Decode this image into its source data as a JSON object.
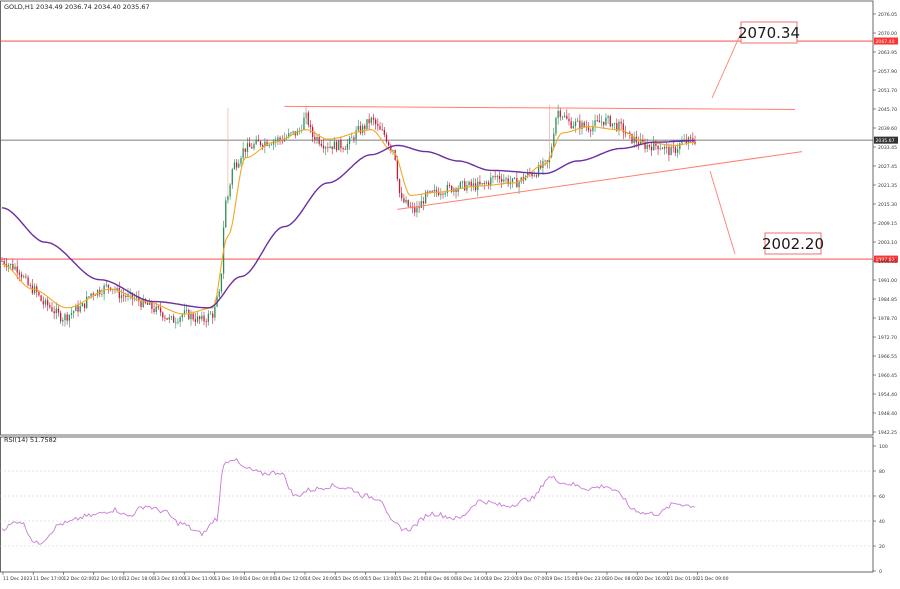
{
  "header": {
    "symbol_line": "GOLD,H1  2034.49 2036.74 2034.40 2035.67",
    "indicator_line": "RSI(14) 51.7582"
  },
  "annotations": {
    "target_up": "2070.34",
    "target_down": "2002.20"
  },
  "colors": {
    "bull": "#2e8b57",
    "bear": "#c21b3a",
    "ma_fast": "#f5a623",
    "ma_slow": "#6a2fa0",
    "rsi": "#c97bd6",
    "level_line": "#ff3333",
    "trend_line": "#ff7f6e",
    "current_price_tag": "#333333"
  },
  "chart_data": [
    {
      "type": "candlestick",
      "title": "GOLD,H1",
      "ylim": [
        1942.25,
        2076.05
      ],
      "y_ticks": [
        "2076.05",
        "2070.00",
        "2063.95",
        "2057.90",
        "2051.70",
        "2045.70",
        "2039.60",
        "2033.45",
        "2027.45",
        "2021.35",
        "2015.30",
        "2009.15",
        "2003.10",
        "1996.95",
        "1991.00",
        "1984.85",
        "1978.70",
        "1972.70",
        "1966.55",
        "1960.45",
        "1954.40",
        "1948.40",
        "1942.25"
      ],
      "x_ticks": [
        "11 Dec 2023",
        "11 Dec 17:00",
        "12 Dec 02:00",
        "12 Dec 10:00",
        "12 Dec 18:00",
        "13 Dec 03:00",
        "13 Dec 11:00",
        "13 Dec 19:00",
        "14 Dec 04:00",
        "14 Dec 12:00",
        "14 Dec 20:00",
        "15 Dec 05:00",
        "15 Dec 13:00",
        "15 Dec 21:00",
        "18 Dec 06:00",
        "18 Dec 14:00",
        "18 Dec 22:00",
        "19 Dec 07:00",
        "19 Dec 15:00",
        "19 Dec 23:00",
        "20 Dec 08:00",
        "20 Dec 16:00",
        "21 Dec 01:00",
        "21 Dec 09:00"
      ],
      "horizontal_levels": [
        {
          "value": 2067.4,
          "label": "2067.40"
        },
        {
          "value": 1997.6,
          "label": "1997.63"
        }
      ],
      "current_price": {
        "value": 2035.67,
        "label": "2035.67"
      },
      "anchors": [
        [
          0,
          1997
        ],
        [
          6,
          1995
        ],
        [
          14,
          1988
        ],
        [
          20,
          1983
        ],
        [
          28,
          1979
        ],
        [
          36,
          1982
        ],
        [
          42,
          1987
        ],
        [
          50,
          1989
        ],
        [
          55,
          1986
        ],
        [
          61,
          1985
        ],
        [
          66,
          1983
        ],
        [
          72,
          1981
        ],
        [
          78,
          1978
        ],
        [
          84,
          1980
        ],
        [
          92,
          1978
        ],
        [
          97,
          1980
        ],
        [
          100,
          1986
        ],
        [
          103,
          2016
        ],
        [
          107,
          2028
        ],
        [
          112,
          2033
        ],
        [
          120,
          2035
        ],
        [
          128,
          2036
        ],
        [
          136,
          2038
        ],
        [
          140,
          2043
        ],
        [
          143,
          2037
        ],
        [
          150,
          2034
        ],
        [
          158,
          2034
        ],
        [
          165,
          2039
        ],
        [
          170,
          2042
        ],
        [
          175,
          2038
        ],
        [
          180,
          2033
        ],
        [
          184,
          2016
        ],
        [
          190,
          2013
        ],
        [
          196,
          2018
        ],
        [
          204,
          2020
        ],
        [
          212,
          2021
        ],
        [
          220,
          2021
        ],
        [
          228,
          2024
        ],
        [
          236,
          2022
        ],
        [
          244,
          2025
        ],
        [
          251,
          2028
        ],
        [
          256,
          2045
        ],
        [
          262,
          2041
        ],
        [
          270,
          2040
        ],
        [
          278,
          2042
        ],
        [
          284,
          2040
        ],
        [
          290,
          2036
        ],
        [
          296,
          2034
        ],
        [
          302,
          2034
        ],
        [
          308,
          2032
        ],
        [
          314,
          2035
        ],
        [
          319,
          2035.67
        ]
      ],
      "series": [
        {
          "name": "MA fast",
          "anchors": [
            [
              0,
              1996
            ],
            [
              14,
              1988
            ],
            [
              30,
              1982
            ],
            [
              50,
              1988
            ],
            [
              66,
              1984
            ],
            [
              84,
              1980
            ],
            [
              97,
              1982
            ],
            [
              104,
              2005
            ],
            [
              112,
              2030
            ],
            [
              125,
              2035
            ],
            [
              140,
              2039
            ],
            [
              150,
              2036
            ],
            [
              170,
              2039
            ],
            [
              180,
              2032
            ],
            [
              188,
              2018
            ],
            [
              200,
              2019
            ],
            [
              220,
              2021
            ],
            [
              236,
              2022
            ],
            [
              250,
              2028
            ],
            [
              258,
              2038
            ],
            [
              270,
              2040
            ],
            [
              284,
              2039
            ],
            [
              296,
              2035
            ],
            [
              310,
              2034
            ],
            [
              319,
              2035
            ]
          ]
        },
        {
          "name": "MA slow",
          "anchors": [
            [
              0,
              2014
            ],
            [
              20,
              2003
            ],
            [
              45,
              1991
            ],
            [
              70,
              1984
            ],
            [
              95,
              1982
            ],
            [
              110,
              1992
            ],
            [
              130,
              2008
            ],
            [
              150,
              2022
            ],
            [
              170,
              2031
            ],
            [
              182,
              2034
            ],
            [
              195,
              2032
            ],
            [
              210,
              2029
            ],
            [
              225,
              2026
            ],
            [
              250,
              2025
            ],
            [
              265,
              2029
            ],
            [
              285,
              2033
            ],
            [
              300,
              2035
            ],
            [
              319,
              2035.5
            ]
          ]
        }
      ]
    },
    {
      "type": "line",
      "title": "RSI(14) 51.7582",
      "ylim": [
        0,
        100
      ],
      "y_ticks": [
        "100",
        "80",
        "60",
        "40",
        "20",
        "0"
      ],
      "series": [
        {
          "name": "RSI(14)",
          "anchors": [
            [
              0,
              34
            ],
            [
              8,
              40
            ],
            [
              16,
              22
            ],
            [
              28,
              38
            ],
            [
              40,
              44
            ],
            [
              52,
              49
            ],
            [
              58,
              44
            ],
            [
              66,
              52
            ],
            [
              74,
              48
            ],
            [
              82,
              38
            ],
            [
              92,
              30
            ],
            [
              99,
              42
            ],
            [
              102,
              86
            ],
            [
              106,
              90
            ],
            [
              112,
              82
            ],
            [
              120,
              78
            ],
            [
              128,
              79
            ],
            [
              135,
              60
            ],
            [
              142,
              65
            ],
            [
              152,
              68
            ],
            [
              160,
              66
            ],
            [
              167,
              60
            ],
            [
              174,
              58
            ],
            [
              180,
              38
            ],
            [
              186,
              33
            ],
            [
              198,
              46
            ],
            [
              210,
              42
            ],
            [
              220,
              56
            ],
            [
              232,
              52
            ],
            [
              244,
              58
            ],
            [
              252,
              75
            ],
            [
              260,
              70
            ],
            [
              270,
              66
            ],
            [
              278,
              68
            ],
            [
              284,
              62
            ],
            [
              290,
              50
            ],
            [
              296,
              46
            ],
            [
              302,
              46
            ],
            [
              310,
              54
            ],
            [
              319,
              52
            ]
          ]
        }
      ]
    }
  ]
}
